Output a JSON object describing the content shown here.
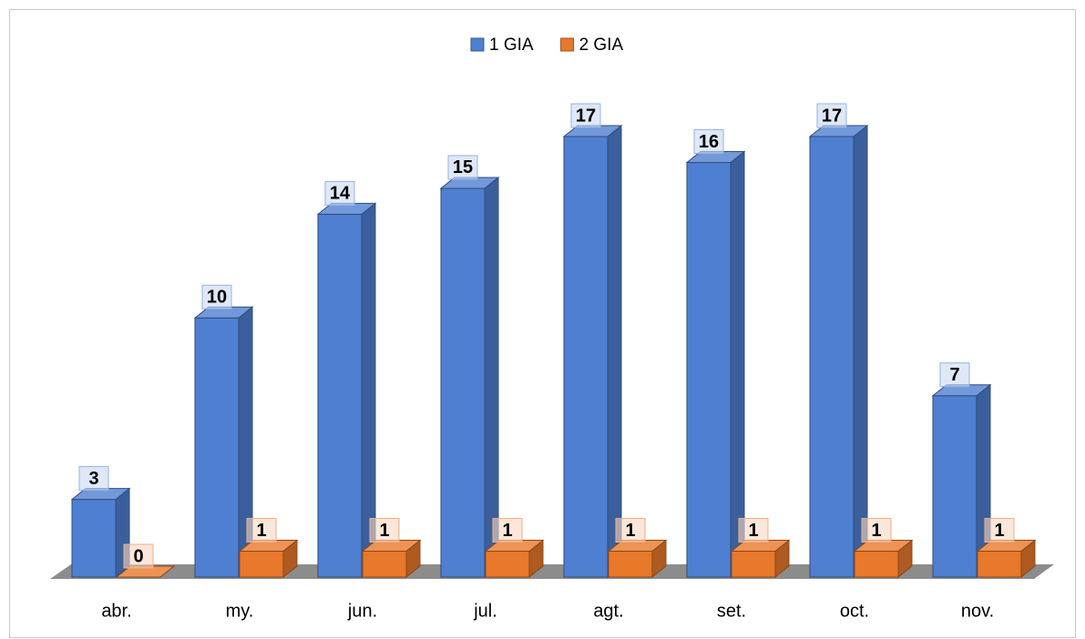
{
  "chart_data": {
    "type": "bar3d",
    "categories": [
      "abr.",
      "my.",
      "jun.",
      "jul.",
      "agt.",
      "set.",
      "oct.",
      "nov."
    ],
    "series": [
      {
        "name": "1 GIA",
        "color": "#4f7fd0",
        "values": [
          3,
          10,
          14,
          15,
          17,
          16,
          17,
          7
        ]
      },
      {
        "name": "2 GIA",
        "color": "#e8782a",
        "values": [
          0,
          1,
          1,
          1,
          1,
          1,
          1,
          1
        ]
      }
    ],
    "legend": "top"
  }
}
